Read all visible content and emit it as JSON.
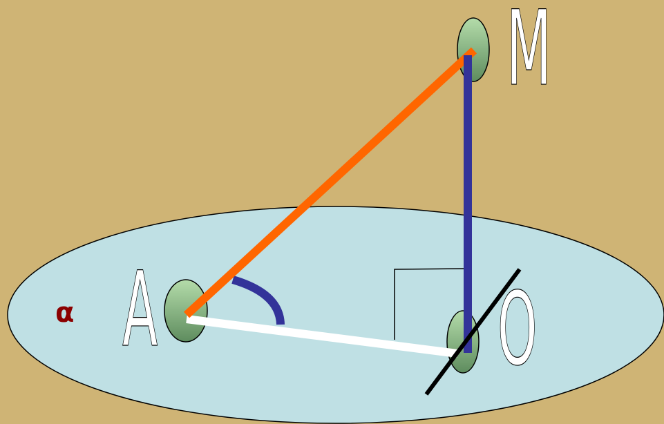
{
  "labels": {
    "point_m": "M",
    "point_a": "A",
    "point_o": "O",
    "plane": "α"
  }
}
